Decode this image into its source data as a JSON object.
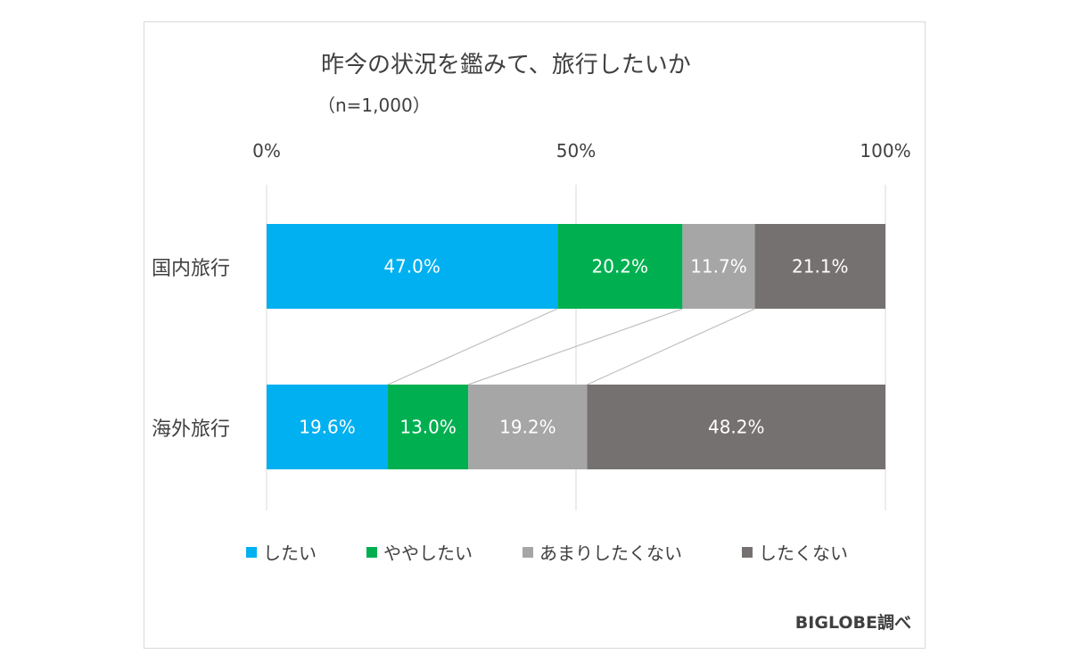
{
  "chart_data": {
    "type": "bar",
    "stacked": true,
    "orientation": "horizontal",
    "percent_stacked": true,
    "title": "昨今の状況を鑑みて、旅行したいか",
    "subtitle": "（n=1,000）",
    "x_ticks": [
      "0%",
      "50%",
      "100%"
    ],
    "xlim": [
      0,
      100
    ],
    "categories": [
      "国内旅行",
      "海外旅行"
    ],
    "series": [
      {
        "name": "したい",
        "color": "#00b0f0",
        "values": [
          47.0,
          19.6
        ],
        "labels": [
          "47.0%",
          "19.6%"
        ]
      },
      {
        "name": "ややしたい",
        "color": "#00b050",
        "values": [
          20.2,
          13.0
        ],
        "labels": [
          "20.2%",
          "13.0%"
        ]
      },
      {
        "name": "あまりしたくない",
        "color": "#a6a6a6",
        "values": [
          11.7,
          19.2
        ],
        "labels": [
          "11.7%",
          "19.2%"
        ]
      },
      {
        "name": "したくない",
        "color": "#767171",
        "values": [
          21.1,
          48.2
        ],
        "labels": [
          "21.1%",
          "48.2%"
        ]
      }
    ],
    "series_lines": true,
    "grid": true,
    "legend_position": "bottom"
  },
  "source": "BIGLOBE調べ"
}
